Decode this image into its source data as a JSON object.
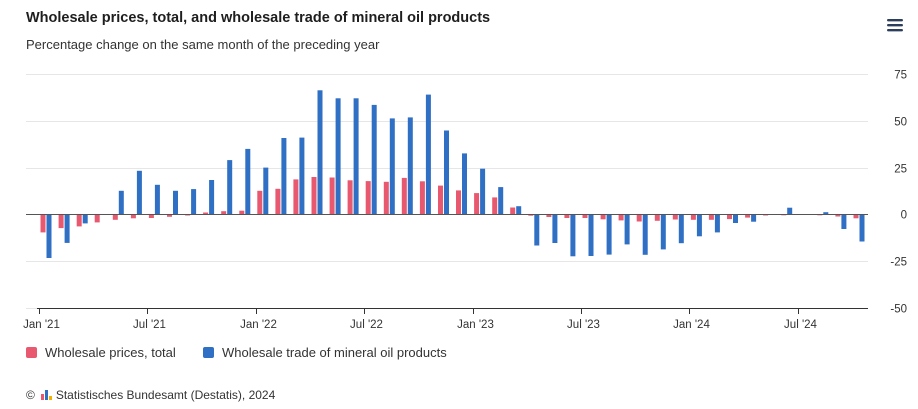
{
  "header": {
    "title": "Wholesale prices, total, and wholesale trade of mineral oil products",
    "subtitle": "Percentage change on the same month of the preceding year"
  },
  "menu": {
    "icon": "hamburger-menu-icon"
  },
  "legend": {
    "items": [
      {
        "label": "Wholesale prices, total",
        "color": "#e8596f"
      },
      {
        "label": "Wholesale trade of mineral oil products",
        "color": "#2f6fc4"
      }
    ]
  },
  "footer": {
    "copyright_symbol": "©",
    "text": "Statistisches Bundesamt (Destatis), 2024"
  },
  "colors": {
    "series_total": "#e8596f",
    "series_oil": "#2f6fc4",
    "grid": "#e6e6e6",
    "axis": "#333333"
  },
  "chart_data": {
    "type": "bar",
    "title": "Wholesale prices, total, and wholesale trade of mineral oil products",
    "subtitle": "Percentage change on the same month of the preceding year",
    "xlabel": "",
    "ylabel": "",
    "ylim": [
      -50,
      75
    ],
    "yticks": [
      -50,
      -25,
      0,
      25,
      50,
      75
    ],
    "y_axis_side": "right",
    "grid": true,
    "legend_position": "bottom-left",
    "categories": [
      "Jan '21",
      "Feb '21",
      "Mar '21",
      "Apr '21",
      "May '21",
      "Jun '21",
      "Jul '21",
      "Aug '21",
      "Sep '21",
      "Oct '21",
      "Nov '21",
      "Dec '21",
      "Jan '22",
      "Feb '22",
      "Mar '22",
      "Apr '22",
      "May '22",
      "Jun '22",
      "Jul '22",
      "Aug '22",
      "Sep '22",
      "Oct '22",
      "Nov '22",
      "Dec '22",
      "Jan '23",
      "Feb '23",
      "Mar '23",
      "Apr '23",
      "May '23",
      "Jun '23",
      "Jul '23",
      "Aug '23",
      "Sep '23",
      "Oct '23",
      "Nov '23",
      "Dec '23",
      "Jan '24",
      "Feb '24",
      "Mar '24",
      "Apr '24",
      "May '24",
      "Jun '24",
      "Jul '24",
      "Aug '24",
      "Sep '24",
      "Oct '24"
    ],
    "xtick_labels": [
      {
        "index": 0,
        "label": "Jan '21"
      },
      {
        "index": 6,
        "label": "Jul '21"
      },
      {
        "index": 12,
        "label": "Jan '22"
      },
      {
        "index": 18,
        "label": "Jul '22"
      },
      {
        "index": 24,
        "label": "Jan '23"
      },
      {
        "index": 30,
        "label": "Jul '23"
      },
      {
        "index": 36,
        "label": "Jan '24"
      },
      {
        "index": 42,
        "label": "Jul '24"
      }
    ],
    "series": [
      {
        "name": "Wholesale prices, total",
        "values": [
          -9.6,
          -7.3,
          -6.4,
          -4.3,
          -2.9,
          -2.1,
          -1.9,
          -1.3,
          -0.6,
          1.0,
          1.7,
          2.0,
          12.6,
          13.7,
          18.7,
          20.0,
          19.7,
          18.2,
          17.8,
          17.4,
          19.5,
          17.7,
          15.4,
          12.8,
          11.4,
          9.1,
          3.7,
          -0.7,
          -1.4,
          -1.9,
          -1.9,
          -2.6,
          -3.2,
          -3.8,
          -3.4,
          -2.7,
          -2.9,
          -2.9,
          -2.5,
          -1.7,
          -0.6,
          -0.5,
          0.1,
          -0.5,
          -1.1,
          -2.1
        ]
      },
      {
        "name": "Wholesale trade of mineral oil products",
        "values": [
          -23.3,
          -15.2,
          -4.8,
          0,
          12.6,
          23.3,
          15.8,
          12.6,
          13.5,
          18.4,
          29.0,
          35.0,
          25.0,
          40.8,
          41.0,
          66.3,
          62.0,
          62.0,
          58.5,
          51.3,
          51.8,
          64.0,
          44.8,
          32.6,
          24.4,
          14.6,
          4.4,
          -16.6,
          -15.3,
          -22.4,
          -22.2,
          -21.5,
          -16.0,
          -21.6,
          -18.7,
          -15.4,
          -11.7,
          -9.6,
          -4.6,
          -3.9,
          0,
          3.6,
          0,
          1.2,
          -7.8,
          -14.5
        ]
      }
    ]
  }
}
